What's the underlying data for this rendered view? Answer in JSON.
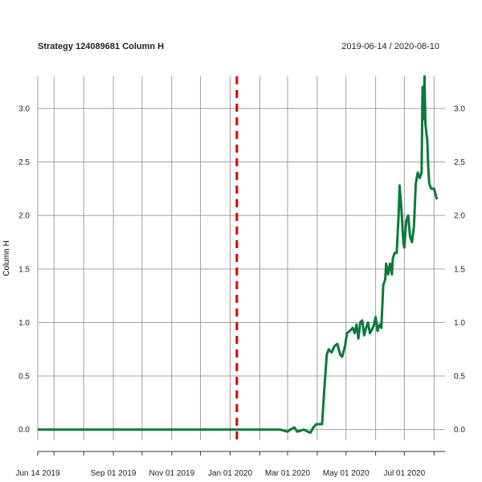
{
  "chart_data": {
    "type": "line",
    "title": "Strategy 124089681 Column H",
    "date_range": "2019-06-14 / 2020-08-10",
    "ylabel": "Column H",
    "xlabel": "",
    "x_range": [
      "2019-06-14",
      "2020-08-10"
    ],
    "ylim": [
      -0.1,
      3.3
    ],
    "y_ticks": [
      0.0,
      0.5,
      1.0,
      1.5,
      2.0,
      2.5,
      3.0
    ],
    "y_tick_labels": [
      "0.0",
      "0.5",
      "1.0",
      "1.5",
      "2.0",
      "2.5",
      "3.0"
    ],
    "x_tick_labels": [
      {
        "date": "2019-06-14",
        "label": "Jun 14 2019"
      },
      {
        "date": "2019-09-01",
        "label": "Sep 01 2019"
      },
      {
        "date": "2019-11-01",
        "label": "Nov 01 2019"
      },
      {
        "date": "2020-01-01",
        "label": "Jan 01 2020"
      },
      {
        "date": "2020-03-01",
        "label": "Mar 01 2020"
      },
      {
        "date": "2020-05-01",
        "label": "May 01 2020"
      },
      {
        "date": "2020-07-01",
        "label": "Jul 01 2020"
      }
    ],
    "x_gridlines": [
      "2019-06-14",
      "2019-07-01",
      "2019-08-01",
      "2019-09-01",
      "2019-10-01",
      "2019-11-01",
      "2019-12-01",
      "2020-01-01",
      "2020-02-01",
      "2020-03-01",
      "2020-04-01",
      "2020-05-01",
      "2020-06-01",
      "2020-07-01",
      "2020-08-01"
    ],
    "grid": true,
    "vline": {
      "date": "2020-01-08",
      "color": "#dd0000",
      "style": "dashed"
    },
    "series": [
      {
        "color": "#0a7a3a",
        "points": [
          [
            "2019-06-14",
            0.0
          ],
          [
            "2020-02-22",
            0.0
          ],
          [
            "2020-02-26",
            -0.01
          ],
          [
            "2020-03-01",
            -0.02
          ],
          [
            "2020-03-04",
            0.0
          ],
          [
            "2020-03-08",
            0.02
          ],
          [
            "2020-03-11",
            -0.02
          ],
          [
            "2020-03-15",
            -0.01
          ],
          [
            "2020-03-18",
            0.0
          ],
          [
            "2020-03-22",
            -0.02
          ],
          [
            "2020-03-25",
            -0.03
          ],
          [
            "2020-03-28",
            0.02
          ],
          [
            "2020-03-31",
            0.05
          ],
          [
            "2020-04-06",
            0.05
          ],
          [
            "2020-04-09",
            0.45
          ],
          [
            "2020-04-11",
            0.7
          ],
          [
            "2020-04-13",
            0.75
          ],
          [
            "2020-04-16",
            0.72
          ],
          [
            "2020-04-19",
            0.78
          ],
          [
            "2020-04-22",
            0.8
          ],
          [
            "2020-04-25",
            0.7
          ],
          [
            "2020-04-27",
            0.68
          ],
          [
            "2020-04-30",
            0.78
          ],
          [
            "2020-05-02",
            0.9
          ],
          [
            "2020-05-05",
            0.92
          ],
          [
            "2020-05-08",
            0.95
          ],
          [
            "2020-05-10",
            0.9
          ],
          [
            "2020-05-12",
            0.98
          ],
          [
            "2020-05-14",
            0.85
          ],
          [
            "2020-05-16",
            1.0
          ],
          [
            "2020-05-18",
            1.02
          ],
          [
            "2020-05-20",
            0.88
          ],
          [
            "2020-05-22",
            0.95
          ],
          [
            "2020-05-24",
            1.0
          ],
          [
            "2020-05-26",
            0.9
          ],
          [
            "2020-05-28",
            0.93
          ],
          [
            "2020-05-30",
            0.97
          ],
          [
            "2020-06-01",
            1.05
          ],
          [
            "2020-06-03",
            0.92
          ],
          [
            "2020-06-05",
            0.98
          ],
          [
            "2020-06-07",
            0.95
          ],
          [
            "2020-06-09",
            1.35
          ],
          [
            "2020-06-11",
            1.4
          ],
          [
            "2020-06-12",
            1.55
          ],
          [
            "2020-06-14",
            1.45
          ],
          [
            "2020-06-16",
            1.55
          ],
          [
            "2020-06-18",
            1.45
          ],
          [
            "2020-06-19",
            1.6
          ],
          [
            "2020-06-21",
            1.65
          ],
          [
            "2020-06-23",
            1.65
          ],
          [
            "2020-06-25",
            2.0
          ],
          [
            "2020-06-26",
            2.28
          ],
          [
            "2020-06-28",
            2.05
          ],
          [
            "2020-06-30",
            1.75
          ],
          [
            "2020-07-01",
            1.7
          ],
          [
            "2020-07-03",
            1.95
          ],
          [
            "2020-07-05",
            2.0
          ],
          [
            "2020-07-07",
            1.8
          ],
          [
            "2020-07-09",
            1.75
          ],
          [
            "2020-07-11",
            1.9
          ],
          [
            "2020-07-13",
            2.3
          ],
          [
            "2020-07-15",
            2.4
          ],
          [
            "2020-07-17",
            2.35
          ],
          [
            "2020-07-19",
            2.4
          ],
          [
            "2020-07-20",
            3.2
          ],
          [
            "2020-07-21",
            2.9
          ],
          [
            "2020-07-22",
            3.3
          ],
          [
            "2020-07-23",
            2.85
          ],
          [
            "2020-07-25",
            2.7
          ],
          [
            "2020-07-26",
            2.45
          ],
          [
            "2020-07-27",
            2.3
          ],
          [
            "2020-07-29",
            2.25
          ],
          [
            "2020-08-01",
            2.25
          ],
          [
            "2020-08-04",
            2.15
          ]
        ]
      }
    ]
  }
}
